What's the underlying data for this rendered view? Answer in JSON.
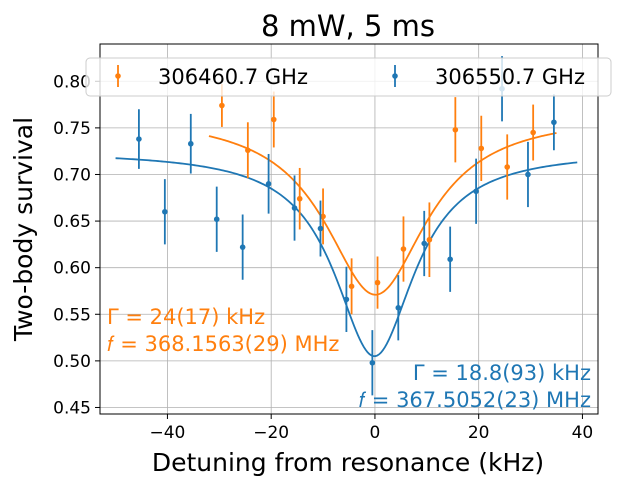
{
  "chart_data": {
    "type": "scatter",
    "title": "8 mW, 5 ms",
    "xlabel": "Detuning from resonance (kHz)",
    "ylabel": "Two-body survival",
    "xlim": [
      -53,
      43
    ],
    "ylim": [
      0.443,
      0.84
    ],
    "xticks": [
      -40,
      -20,
      0,
      20,
      40
    ],
    "xtick_labels": [
      "−40",
      "−20",
      "0",
      "20",
      "40"
    ],
    "yticks": [
      0.45,
      0.5,
      0.55,
      0.6,
      0.65,
      0.7,
      0.75,
      0.8
    ],
    "ytick_labels": [
      "0.45",
      "0.50",
      "0.55",
      "0.60",
      "0.65",
      "0.70",
      "0.75",
      "0.80"
    ],
    "grid": true,
    "legend_position": "top",
    "series": [
      {
        "name": "306460.7 GHz",
        "color": "#ff7f0e",
        "points": [
          {
            "x": -29.5,
            "y": 0.774,
            "err": 0.023
          },
          {
            "x": -24.5,
            "y": 0.726,
            "err": 0.03
          },
          {
            "x": -19.5,
            "y": 0.759,
            "err": 0.03
          },
          {
            "x": -14.5,
            "y": 0.674,
            "err": 0.033
          },
          {
            "x": -10.0,
            "y": 0.655,
            "err": 0.03
          },
          {
            "x": -4.5,
            "y": 0.58,
            "err": 0.03
          },
          {
            "x": 0.5,
            "y": 0.584,
            "err": 0.028
          },
          {
            "x": 5.5,
            "y": 0.62,
            "err": 0.035
          },
          {
            "x": 10.5,
            "y": 0.63,
            "err": 0.04
          },
          {
            "x": 15.5,
            "y": 0.748,
            "err": 0.035
          },
          {
            "x": 20.5,
            "y": 0.728,
            "err": 0.035
          },
          {
            "x": 25.5,
            "y": 0.708,
            "err": 0.035
          },
          {
            "x": 30.5,
            "y": 0.745,
            "err": 0.03
          }
        ],
        "fit": {
          "model": "lorentzian",
          "baseline": 0.765,
          "depth": 0.194,
          "center_khz": 0.1,
          "fwhm_khz": 24,
          "x_range": [
            -32,
            35
          ]
        }
      },
      {
        "name": "306550.7 GHz",
        "color": "#1f77b4",
        "points": [
          {
            "x": -45.5,
            "y": 0.738,
            "err": 0.032
          },
          {
            "x": -40.5,
            "y": 0.66,
            "err": 0.035
          },
          {
            "x": -35.5,
            "y": 0.733,
            "err": 0.032
          },
          {
            "x": -30.5,
            "y": 0.652,
            "err": 0.035
          },
          {
            "x": -25.5,
            "y": 0.622,
            "err": 0.035
          },
          {
            "x": -20.5,
            "y": 0.69,
            "err": 0.032
          },
          {
            "x": -15.5,
            "y": 0.664,
            "err": 0.035
          },
          {
            "x": -10.5,
            "y": 0.642,
            "err": 0.03
          },
          {
            "x": -5.5,
            "y": 0.566,
            "err": 0.035
          },
          {
            "x": -0.5,
            "y": 0.498,
            "err": 0.035
          },
          {
            "x": 4.5,
            "y": 0.557,
            "err": 0.035
          },
          {
            "x": 9.5,
            "y": 0.626,
            "err": 0.035
          },
          {
            "x": 14.5,
            "y": 0.609,
            "err": 0.035
          },
          {
            "x": 19.5,
            "y": 0.682,
            "err": 0.035
          },
          {
            "x": 24.5,
            "y": 0.792,
            "err": 0.035
          },
          {
            "x": 29.5,
            "y": 0.7,
            "err": 0.035
          },
          {
            "x": 34.5,
            "y": 0.756,
            "err": 0.03
          }
        ],
        "fit": {
          "model": "lorentzian",
          "baseline": 0.725,
          "depth": 0.22,
          "center_khz": -0.1,
          "fwhm_khz": 18.8,
          "x_range": [
            -50,
            39
          ]
        }
      }
    ],
    "annotations": [
      {
        "lines": [
          "Γ = 24(17) kHz",
          "𝑓 = 368.1563(29) MHz"
        ],
        "color": "#ff7f0e"
      },
      {
        "lines": [
          "Γ = 18.8(93) kHz",
          "𝑓 = 367.5052(23) MHz"
        ],
        "color": "#1f77b4"
      }
    ]
  }
}
